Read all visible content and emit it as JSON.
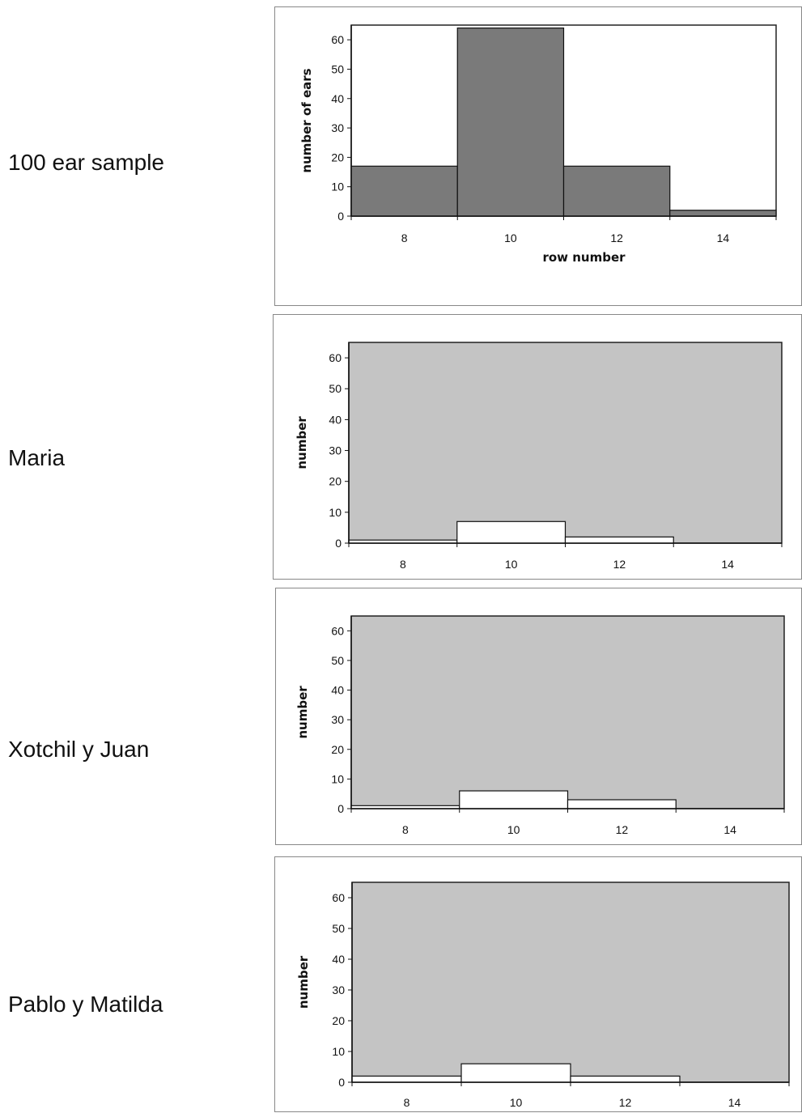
{
  "chart_data": [
    {
      "type": "bar",
      "label": "100 ear sample",
      "categories": [
        "8",
        "10",
        "12",
        "14"
      ],
      "values": [
        17,
        64,
        17,
        2
      ],
      "xlabel": "row number",
      "ylabel": "number of ears",
      "ylim": [
        0,
        65
      ],
      "yticks": [
        "0",
        "10",
        "20",
        "30",
        "40",
        "50",
        "60"
      ],
      "plot_bg": "#ffffff",
      "bar_fill": "#7a7a7a"
    },
    {
      "type": "bar",
      "label": "Maria",
      "categories": [
        "8",
        "10",
        "12",
        "14"
      ],
      "values": [
        1,
        7,
        2,
        0
      ],
      "xlabel": "",
      "ylabel": "number",
      "ylim": [
        0,
        65
      ],
      "yticks": [
        "0",
        "10",
        "20",
        "30",
        "40",
        "50",
        "60"
      ],
      "plot_bg": "#c4c4c4",
      "bar_fill": "#ffffff"
    },
    {
      "type": "bar",
      "label": "Xotchil y Juan",
      "categories": [
        "8",
        "10",
        "12",
        "14"
      ],
      "values": [
        1,
        6,
        3,
        0
      ],
      "xlabel": "",
      "ylabel": "number",
      "ylim": [
        0,
        65
      ],
      "yticks": [
        "0",
        "10",
        "20",
        "30",
        "40",
        "50",
        "60"
      ],
      "plot_bg": "#c4c4c4",
      "bar_fill": "#ffffff"
    },
    {
      "type": "bar",
      "label": "Pablo y Matilda",
      "categories": [
        "8",
        "10",
        "12",
        "14"
      ],
      "values": [
        2,
        6,
        2,
        0
      ],
      "xlabel": "",
      "ylabel": "number",
      "ylim": [
        0,
        65
      ],
      "yticks": [
        "0",
        "10",
        "20",
        "30",
        "40",
        "50",
        "60"
      ],
      "plot_bg": "#c4c4c4",
      "bar_fill": "#ffffff"
    }
  ]
}
